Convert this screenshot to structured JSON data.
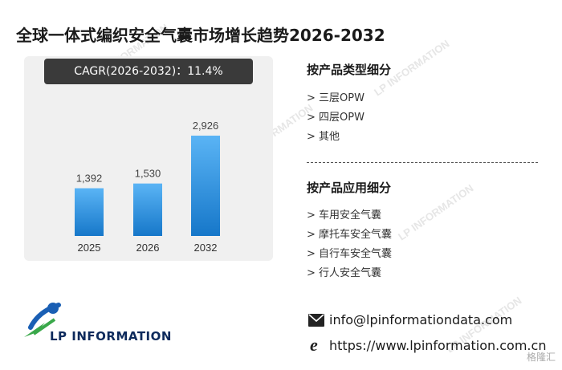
{
  "title": "全球一体式编织安全气囊市场增长趋势2026-2032",
  "cagr_label": "CAGR(2026-2032)：11.4%",
  "chart_data": {
    "type": "bar",
    "categories": [
      "2025",
      "2026",
      "2032"
    ],
    "values": [
      1392,
      1530,
      2926
    ],
    "data_labels": [
      "1,392",
      "1,530",
      "2,926"
    ],
    "title": "",
    "xlabel": "",
    "ylabel": "",
    "ylim": [
      0,
      3300
    ],
    "grid": false,
    "bar_color_top": "#5ab4f5",
    "bar_color_bottom": "#1677c9"
  },
  "segments_by_type": {
    "heading": "按产品类型细分",
    "items": [
      "> 三层OPW",
      "> 四层OPW",
      "> 其他"
    ]
  },
  "segments_by_application": {
    "heading": "按产品应用细分",
    "items": [
      "> 车用安全气囊",
      "> 摩托车安全气囊",
      "> 自行车安全气囊",
      "> 行人安全气囊"
    ]
  },
  "contact": {
    "email": "info@lpinformationdata.com",
    "website": "https://www.lpinformation.com.cn"
  },
  "logo": {
    "text": "LP INFORMATION",
    "watermark_text": "LP INFORMATION"
  },
  "corner_mark": "格隆汇",
  "colors": {
    "accent_dark": "#3a3a3a",
    "panel_bg": "#f0f0f0",
    "logo_blue": "#1a5fb4",
    "logo_green": "#3aa84a",
    "logo_text": "#0d2a5c"
  },
  "icons": [
    "envelope-icon",
    "ie-browser-icon",
    "lp-logo-icon"
  ]
}
